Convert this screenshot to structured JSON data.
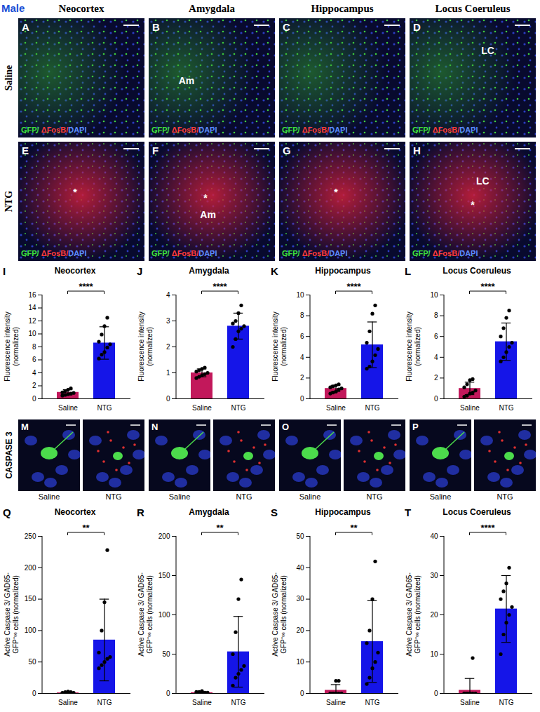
{
  "figure": {
    "corner_label": "Male",
    "columns": [
      "Neocortex",
      "Amygdala",
      "Hippocampus",
      "Locus Coeruleus"
    ],
    "rows": [
      "Saline",
      "NTG"
    ],
    "stain": [
      "GFP/",
      " ΔFosB/",
      "DAPI"
    ],
    "image_panels": [
      {
        "letter": "A",
        "row": "Saline",
        "column": "Neocortex",
        "labels": []
      },
      {
        "letter": "B",
        "row": "Saline",
        "column": "Amygdala",
        "labels": [
          "Am"
        ]
      },
      {
        "letter": "C",
        "row": "Saline",
        "column": "Hippocampus",
        "labels": []
      },
      {
        "letter": "D",
        "row": "Saline",
        "column": "Locus Coeruleus",
        "labels": [
          "LC"
        ]
      },
      {
        "letter": "E",
        "row": "NTG",
        "column": "Neocortex",
        "labels": [
          "*"
        ]
      },
      {
        "letter": "F",
        "row": "NTG",
        "column": "Amygdala",
        "labels": [
          "*",
          "Am"
        ]
      },
      {
        "letter": "G",
        "row": "NTG",
        "column": "Hippocampus",
        "labels": [
          "*"
        ]
      },
      {
        "letter": "H",
        "row": "NTG",
        "column": "Locus Coeruleus",
        "labels": [
          "LC",
          "*"
        ]
      }
    ],
    "caspase_row": {
      "label": "CASPASE 3",
      "images": [
        "Saline",
        "NTG"
      ],
      "letters": [
        "M",
        "N",
        "O",
        "P"
      ]
    }
  },
  "chart_data": [
    {
      "type": "bar",
      "panel": "I",
      "title": "Neocortex",
      "ylabel": [
        "Fluorescence intensity",
        "(normalized)"
      ],
      "categories": [
        "Saline",
        "NTG"
      ],
      "values": [
        1.0,
        8.6
      ],
      "errors": [
        0.4,
        2.5
      ],
      "points": [
        [
          0.5,
          0.6,
          0.7,
          0.8,
          0.9,
          1.0,
          1.2,
          1.4,
          1.6
        ],
        [
          6.2,
          6.8,
          7.2,
          7.9,
          8.4,
          8.8,
          9.9,
          11.2,
          12.5
        ]
      ],
      "colors": [
        "#c2185b",
        "#1515e8"
      ],
      "ylim": [
        0,
        16
      ],
      "yticks": [
        0,
        2,
        4,
        6,
        8,
        10,
        12,
        14,
        16
      ],
      "significance": "****"
    },
    {
      "type": "bar",
      "panel": "J",
      "title": "Amygdala",
      "ylabel": [
        "Fluorescence intensity",
        "(normalized)"
      ],
      "categories": [
        "Saline",
        "NTG"
      ],
      "values": [
        1.0,
        2.8
      ],
      "errors": [
        0.15,
        0.5
      ],
      "points": [
        [
          0.8,
          0.85,
          0.9,
          0.95,
          1.0,
          1.05,
          1.1,
          1.15,
          1.2
        ],
        [
          2.0,
          2.3,
          2.6,
          2.7,
          2.8,
          2.9,
          3.0,
          3.3,
          3.6
        ]
      ],
      "colors": [
        "#c2185b",
        "#1515e8"
      ],
      "ylim": [
        0,
        4
      ],
      "yticks": [
        0,
        1,
        2,
        3,
        4
      ],
      "significance": "****"
    },
    {
      "type": "bar",
      "panel": "K",
      "title": "Hippocampus",
      "ylabel": [
        "Fluorescence intensity",
        "(normalized)"
      ],
      "categories": [
        "Saline",
        "NTG"
      ],
      "values": [
        1.0,
        5.2
      ],
      "errors": [
        0.3,
        2.2
      ],
      "points": [
        [
          0.5,
          0.6,
          0.7,
          0.9,
          1.0,
          1.1,
          1.2,
          1.3,
          1.4
        ],
        [
          2.9,
          3.1,
          3.6,
          4.2,
          4.8,
          5.4,
          6.5,
          8.2,
          9.0
        ]
      ],
      "colors": [
        "#c2185b",
        "#1515e8"
      ],
      "ylim": [
        0,
        10
      ],
      "yticks": [
        0,
        2,
        4,
        6,
        8,
        10
      ],
      "significance": "****"
    },
    {
      "type": "bar",
      "panel": "L",
      "title": "Locus Coeruleus",
      "ylabel": [
        "Fluorescence intensity",
        "(normalized)"
      ],
      "categories": [
        "Saline",
        "NTG"
      ],
      "values": [
        1.0,
        5.5
      ],
      "errors": [
        0.6,
        1.8
      ],
      "points": [
        [
          0.2,
          0.3,
          0.5,
          0.6,
          0.8,
          1.1,
          1.4,
          1.8,
          1.9
        ],
        [
          3.6,
          4.0,
          4.5,
          5.0,
          5.4,
          6.0,
          6.8,
          7.8,
          8.5
        ]
      ],
      "colors": [
        "#c2185b",
        "#1515e8"
      ],
      "ylim": [
        0,
        10
      ],
      "yticks": [
        0,
        2,
        4,
        6,
        8,
        10
      ],
      "significance": "****"
    },
    {
      "type": "bar",
      "panel": "Q",
      "title": "Neocortex",
      "ylabel": [
        "Active Caspase 3/ GAD65-",
        "GFP⁺ᵛᵉ cells (normalized)"
      ],
      "categories": [
        "Saline",
        "NTG"
      ],
      "values": [
        1,
        85
      ],
      "errors": [
        1.2,
        65
      ],
      "points": [
        [
          0,
          0,
          0,
          0,
          1,
          1,
          2,
          3,
          2
        ],
        [
          40,
          45,
          50,
          55,
          58,
          65,
          100,
          145,
          228
        ]
      ],
      "colors": [
        "#c2185b",
        "#1515e8"
      ],
      "ylim": [
        0,
        250
      ],
      "yticks": [
        0,
        50,
        100,
        150,
        200,
        250
      ],
      "significance": "**"
    },
    {
      "type": "bar",
      "panel": "R",
      "title": "Amygdala",
      "ylabel": [
        "Active Caspase 3/ GAD65-",
        "GFP⁺ᵛᵉ cells (normalized)"
      ],
      "categories": [
        "Saline",
        "NTG"
      ],
      "values": [
        1,
        53
      ],
      "errors": [
        1.1,
        45
      ],
      "points": [
        [
          0,
          0,
          0,
          1,
          1,
          2,
          2,
          3,
          0
        ],
        [
          10,
          20,
          25,
          30,
          35,
          50,
          78,
          120,
          145
        ]
      ],
      "colors": [
        "#c2185b",
        "#1515e8"
      ],
      "ylim": [
        0,
        200
      ],
      "yticks": [
        0,
        50,
        100,
        150,
        200
      ],
      "significance": "**"
    },
    {
      "type": "bar",
      "panel": "S",
      "title": "Hippocampus",
      "ylabel": [
        "Active Caspase 3/ GAD65-",
        "GFP⁺ᵛᵉ cells (normalized)"
      ],
      "categories": [
        "Saline",
        "NTG"
      ],
      "values": [
        1.0,
        16.5
      ],
      "errors": [
        1.8,
        13
      ],
      "points": [
        [
          0,
          0,
          0,
          0,
          0,
          0,
          0,
          4,
          4
        ],
        [
          3,
          5,
          8,
          10,
          13,
          16,
          20,
          30,
          42
        ]
      ],
      "colors": [
        "#c2185b",
        "#1515e8"
      ],
      "ylim": [
        0,
        50
      ],
      "yticks": [
        0,
        10,
        20,
        30,
        40,
        50
      ],
      "significance": "**"
    },
    {
      "type": "bar",
      "panel": "T",
      "title": "Locus Coeruleus",
      "ylabel": [
        "Active Caspase 3/ GAD65-",
        "GFP⁺ᵛᵉ cells (normalized)"
      ],
      "categories": [
        "Saline",
        "NTG"
      ],
      "values": [
        0.8,
        21.5
      ],
      "errors": [
        3,
        8.5
      ],
      "points": [
        [
          0,
          0,
          0,
          0,
          0,
          0,
          0,
          0,
          9
        ],
        [
          10,
          15,
          18,
          20,
          22,
          24,
          26,
          28,
          32
        ]
      ],
      "colors": [
        "#c2185b",
        "#1515e8"
      ],
      "ylim": [
        0,
        40
      ],
      "yticks": [
        0,
        10,
        20,
        30,
        40
      ],
      "significance": "****"
    }
  ]
}
